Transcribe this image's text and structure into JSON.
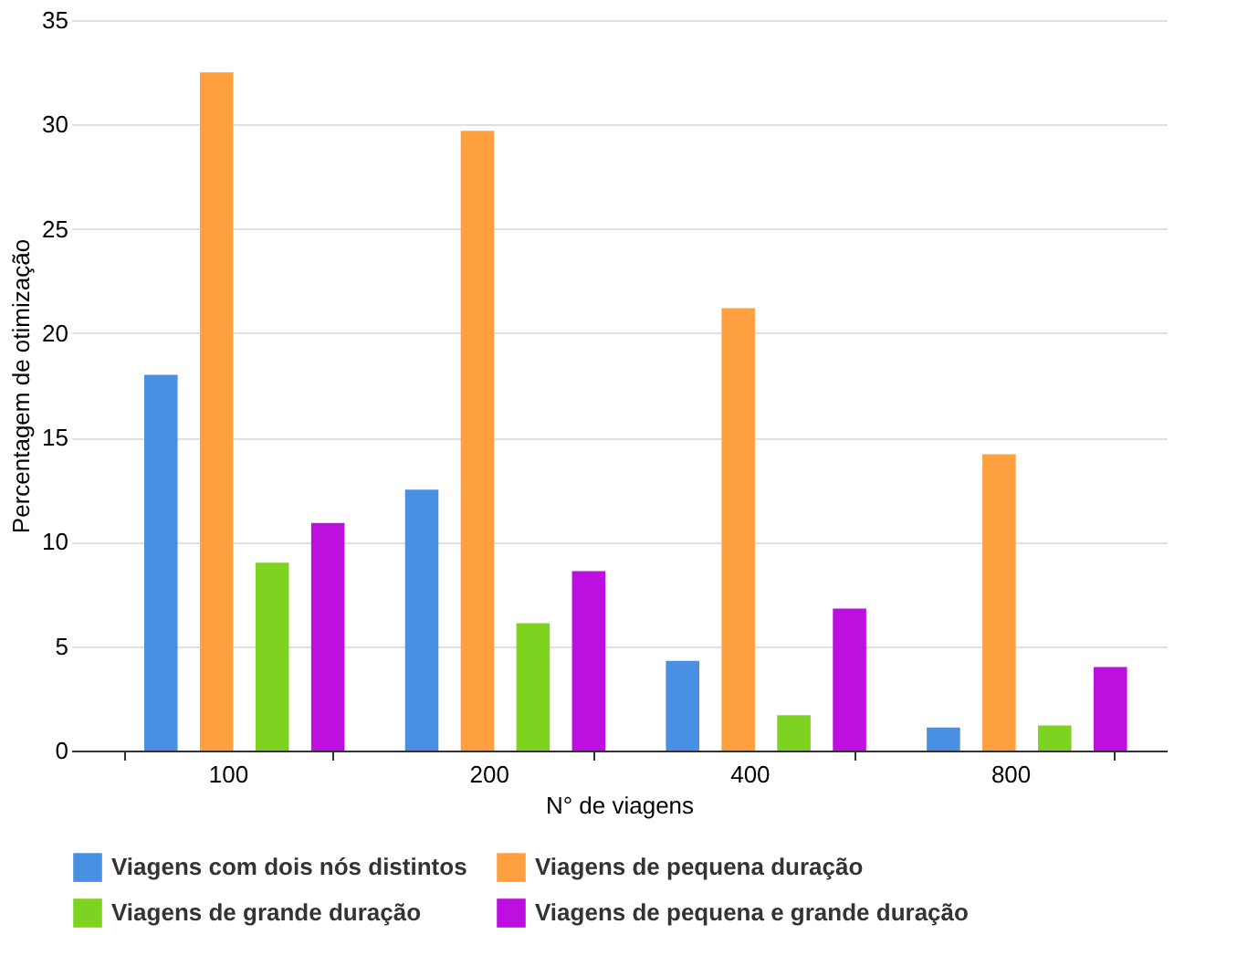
{
  "chart_data": {
    "type": "bar",
    "xlabel": "N° de viagens",
    "ylabel": "Percentagem de otimização",
    "categories": [
      "100",
      "200",
      "400",
      "800"
    ],
    "series": [
      {
        "name": "Viagens com dois nós distintos",
        "color": "#4a90e2",
        "values": [
          18.0,
          12.5,
          4.3,
          1.1
        ]
      },
      {
        "name": "Viagens de pequena duração",
        "color": "#ffa040",
        "values": [
          32.5,
          29.7,
          21.2,
          14.2
        ]
      },
      {
        "name": "Viagens de grande duração",
        "color": "#7ed321",
        "values": [
          9.0,
          6.1,
          1.7,
          1.2
        ]
      },
      {
        "name": "Viagens de pequena e grande duração",
        "color": "#bd10e0",
        "values": [
          10.9,
          8.6,
          6.8,
          4.0
        ]
      }
    ],
    "ylim": [
      0,
      35
    ],
    "yticks": [
      0,
      5,
      10,
      15,
      20,
      25,
      30,
      35
    ],
    "grid": "y",
    "legend": "bottom"
  }
}
